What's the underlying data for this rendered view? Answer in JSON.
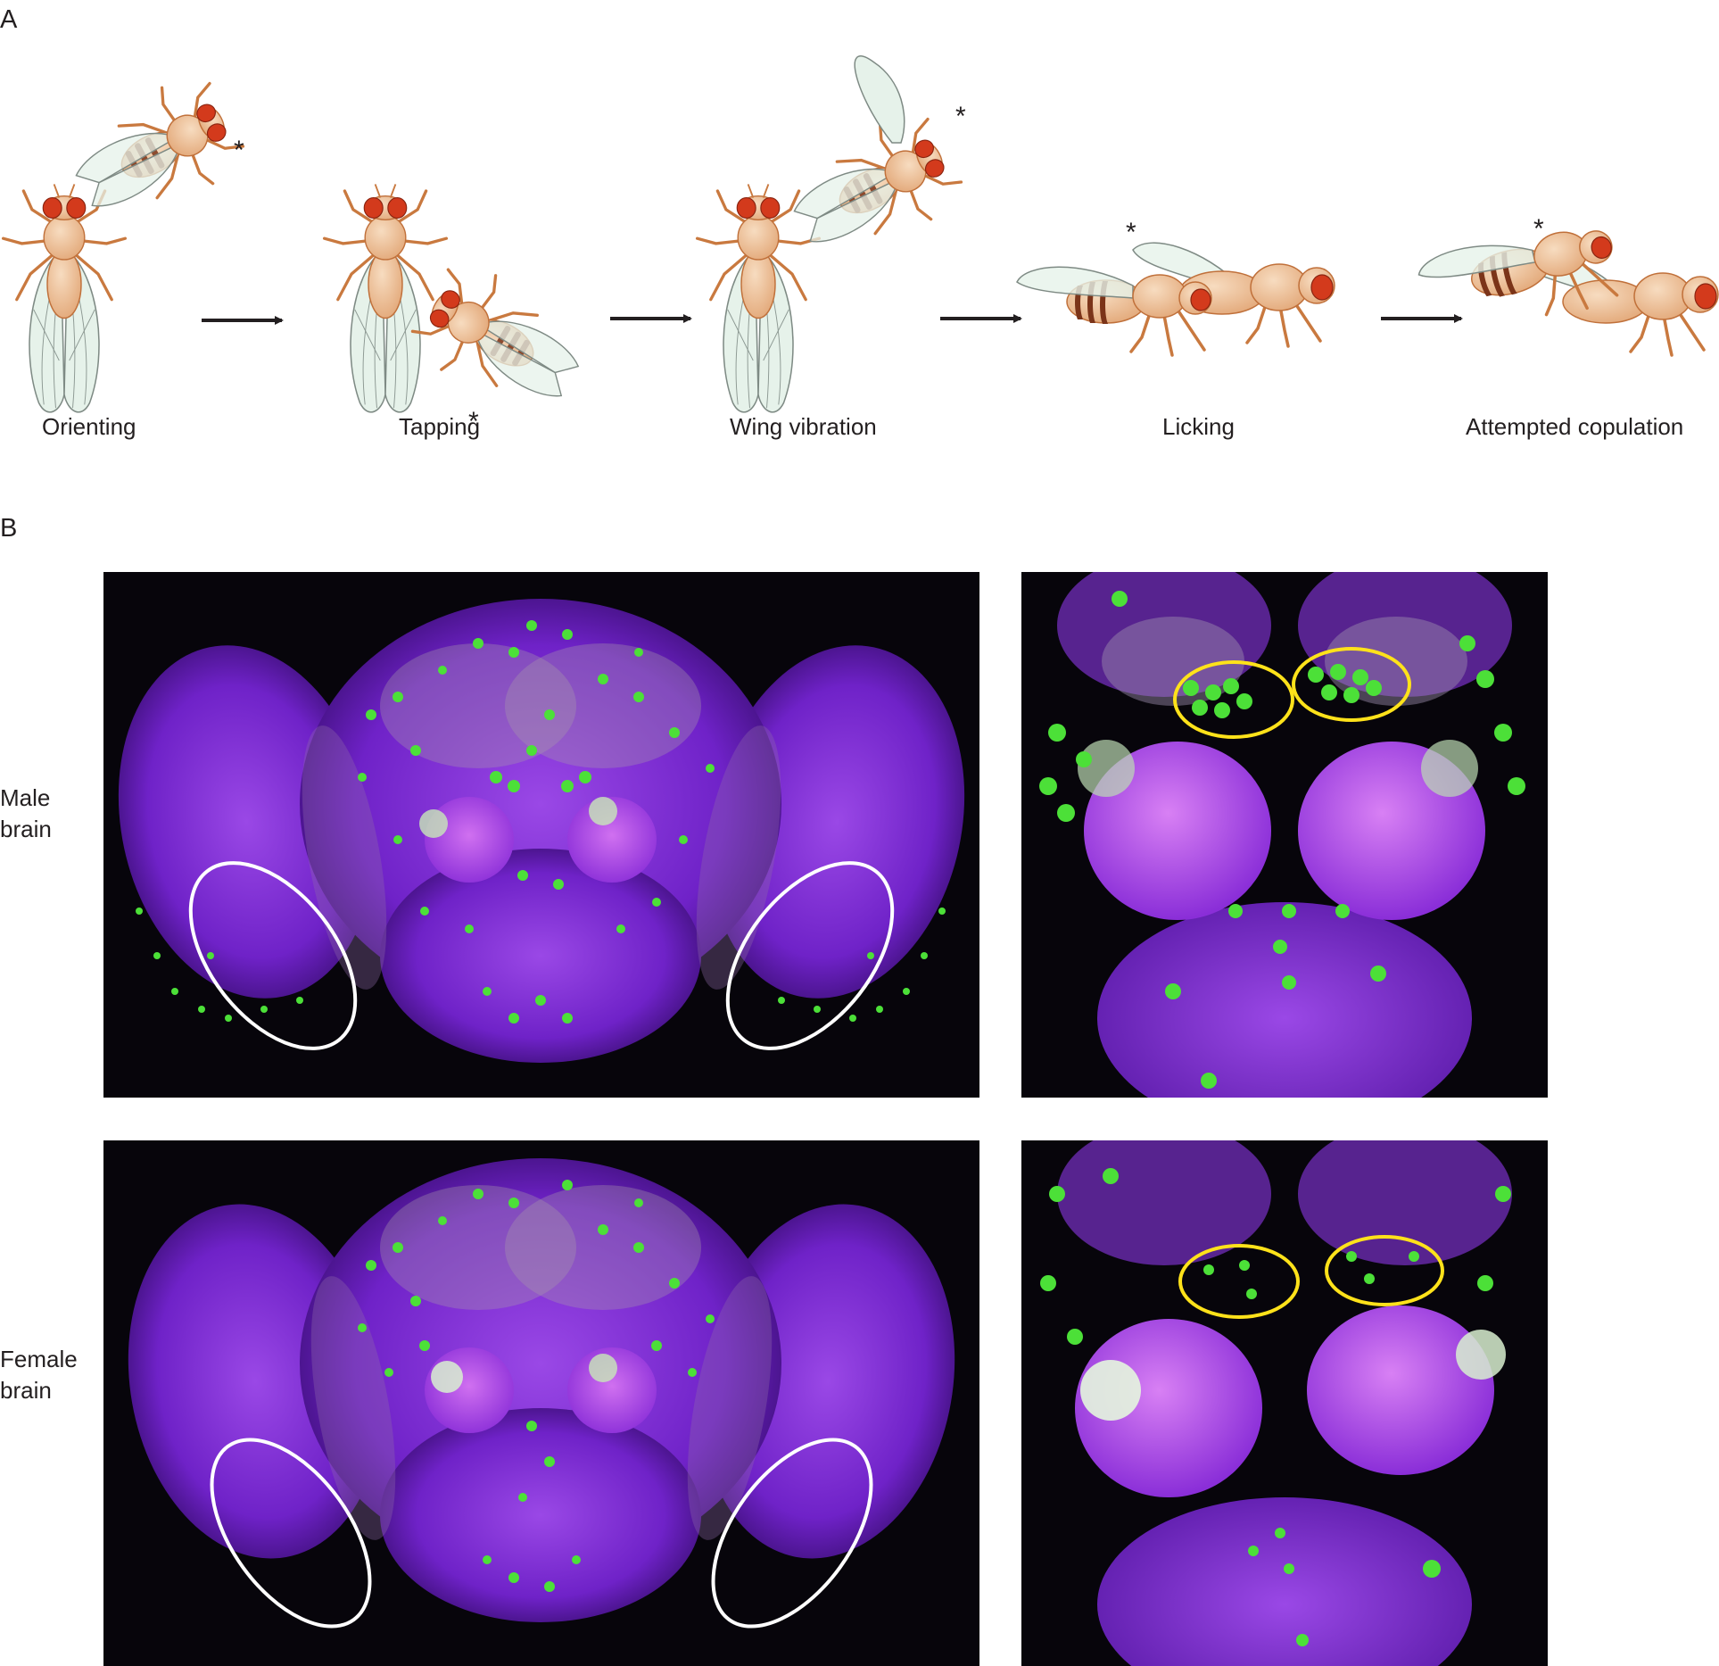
{
  "panels": {
    "a": "A",
    "b": "B"
  },
  "sequence": {
    "stages": [
      {
        "label": "Orienting"
      },
      {
        "label": "Tapping"
      },
      {
        "label": "Wing vibration"
      },
      {
        "label": "Licking"
      },
      {
        "label": "Attempted copulation"
      }
    ],
    "marker": "*"
  },
  "brains": {
    "rows": [
      {
        "label_line1": "Male",
        "label_line2": "brain"
      },
      {
        "label_line1": "Female",
        "label_line2": "brain"
      }
    ]
  },
  "colors": {
    "fly_body": "#eec298",
    "fly_outline": "#c0703a",
    "fly_eye": "#d33a1c",
    "wing_fill": "#e6f2ea",
    "wing_line": "#7e8a84",
    "abdomen_band": "#7b3419",
    "tissue": "#7a2ad6",
    "neurons": "#4ce038",
    "ring_optic": "#ffffff",
    "ring_cluster": "#ffe21a",
    "background_image": "#07050b"
  }
}
